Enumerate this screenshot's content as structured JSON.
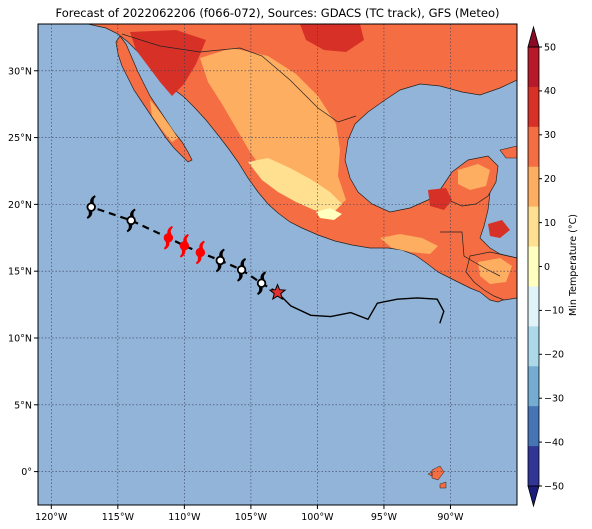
{
  "title": "Forecast of 2022062206 (f066-072), Sources: GDACS (TC track), GFS (Meteo)",
  "map": {
    "lon_range": [
      -121,
      -85
    ],
    "lat_range": [
      -2.5,
      33.5
    ],
    "lon_ticks": [
      {
        "value": -120,
        "label": "120°W"
      },
      {
        "value": -115,
        "label": "115°W"
      },
      {
        "value": -110,
        "label": "110°W"
      },
      {
        "value": -105,
        "label": "105°W"
      },
      {
        "value": -100,
        "label": "100°W"
      },
      {
        "value": -95,
        "label": "95°W"
      },
      {
        "value": -90,
        "label": "90°W"
      }
    ],
    "lat_ticks": [
      {
        "value": 0,
        "label": "0°"
      },
      {
        "value": 5,
        "label": "5°N"
      },
      {
        "value": 10,
        "label": "10°N"
      },
      {
        "value": 15,
        "label": "15°N"
      },
      {
        "value": 20,
        "label": "20°N"
      },
      {
        "value": 25,
        "label": "25°N"
      },
      {
        "value": 30,
        "label": "30°N"
      }
    ],
    "grid": true,
    "ocean_color": "#92b4d8"
  },
  "colorbar": {
    "label": "Min Temperature (°C)",
    "ticks": [
      "50",
      "40",
      "30",
      "20",
      "10",
      "0",
      "−10",
      "−20",
      "−30",
      "−40",
      "−50"
    ],
    "colors": [
      "#8b0a26",
      "#b5192a",
      "#d73127",
      "#f46d43",
      "#fdae61",
      "#fee090",
      "#ffffc0",
      "#e0f3f8",
      "#abd9e9",
      "#74add1",
      "#4575b4",
      "#313695",
      "#1c1c7a"
    ]
  },
  "storm_track": {
    "past_track": [
      [
        -103.0,
        13.4
      ],
      [
        -102.0,
        12.4
      ],
      [
        -100.5,
        11.7
      ],
      [
        -99.0,
        11.6
      ],
      [
        -97.5,
        11.9
      ],
      [
        -96.2,
        11.4
      ],
      [
        -95.5,
        12.6
      ],
      [
        -94.0,
        12.9
      ],
      [
        -92.5,
        13.0
      ],
      [
        -91.0,
        12.9
      ],
      [
        -90.5,
        12.0
      ],
      [
        -90.8,
        11.1
      ]
    ],
    "current_position": [
      -103.0,
      13.4
    ],
    "forecast_track": [
      [
        -103.0,
        13.4
      ],
      [
        -104.2,
        14.1
      ],
      [
        -105.7,
        15.1
      ],
      [
        -107.3,
        15.8
      ],
      [
        -108.8,
        16.4
      ],
      [
        -110.0,
        16.9
      ],
      [
        -111.2,
        17.5
      ],
      [
        -114.0,
        18.8
      ],
      [
        -117.0,
        19.8
      ]
    ],
    "forecast_points": [
      {
        "lon": -104.2,
        "lat": 14.1,
        "category": "tropical storm",
        "color": "#000000"
      },
      {
        "lon": -105.7,
        "lat": 15.1,
        "category": "tropical storm",
        "color": "#000000"
      },
      {
        "lon": -107.3,
        "lat": 15.8,
        "category": "tropical storm",
        "color": "#000000"
      },
      {
        "lon": -108.8,
        "lat": 16.4,
        "category": "hurricane",
        "color": "#ff0000"
      },
      {
        "lon": -110.0,
        "lat": 16.9,
        "category": "hurricane",
        "color": "#ff0000"
      },
      {
        "lon": -111.2,
        "lat": 17.5,
        "category": "hurricane",
        "color": "#ff0000"
      },
      {
        "lon": -114.0,
        "lat": 18.8,
        "category": "tropical storm",
        "color": "#000000"
      },
      {
        "lon": -117.0,
        "lat": 19.8,
        "category": "tropical storm",
        "color": "#000000"
      }
    ]
  }
}
